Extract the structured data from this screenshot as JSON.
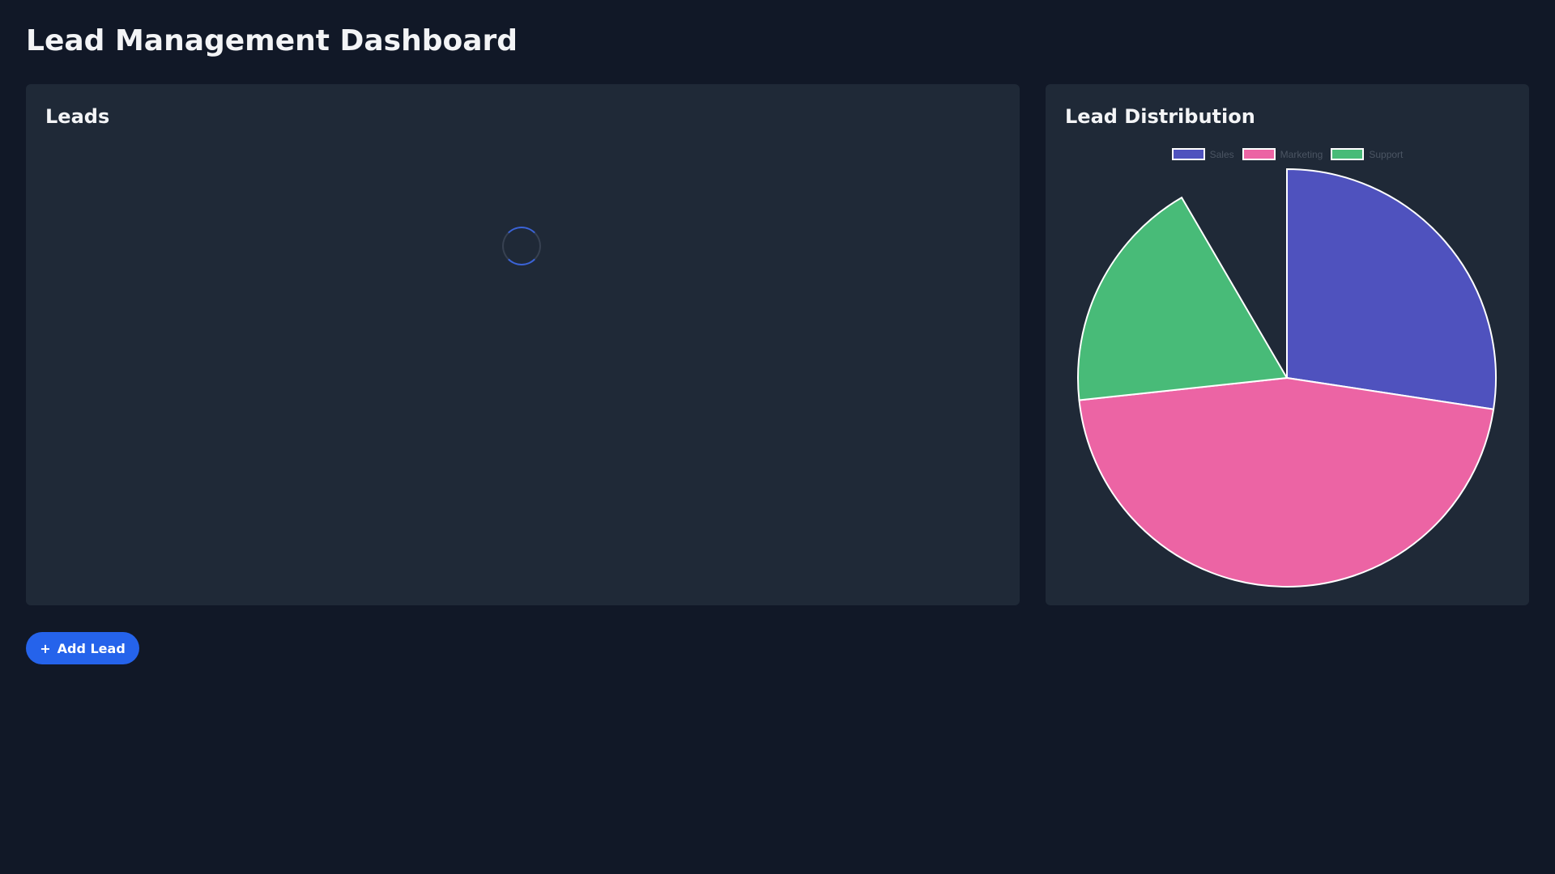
{
  "header": {
    "title": "Lead Management Dashboard"
  },
  "leads_panel": {
    "title": "Leads",
    "state": "loading"
  },
  "distribution_panel": {
    "title": "Lead Distribution"
  },
  "actions": {
    "add_lead_icon": "+",
    "add_lead_label": "Add Lead"
  },
  "colors": {
    "sales": "#4f52be",
    "marketing": "#ec64a4",
    "support": "#48bb78",
    "accent": "#2563eb"
  },
  "chart_data": {
    "type": "pie",
    "title": "Lead Distribution",
    "categories": [
      "Sales",
      "Marketing",
      "Support"
    ],
    "values": [
      27.4,
      45.9,
      18.3
    ],
    "note": "Remaining ~8.4% of the circle is empty (hidden/unrendered slice)",
    "legend_position": "top",
    "colors": [
      "#4f52be",
      "#ec64a4",
      "#48bb78"
    ]
  }
}
